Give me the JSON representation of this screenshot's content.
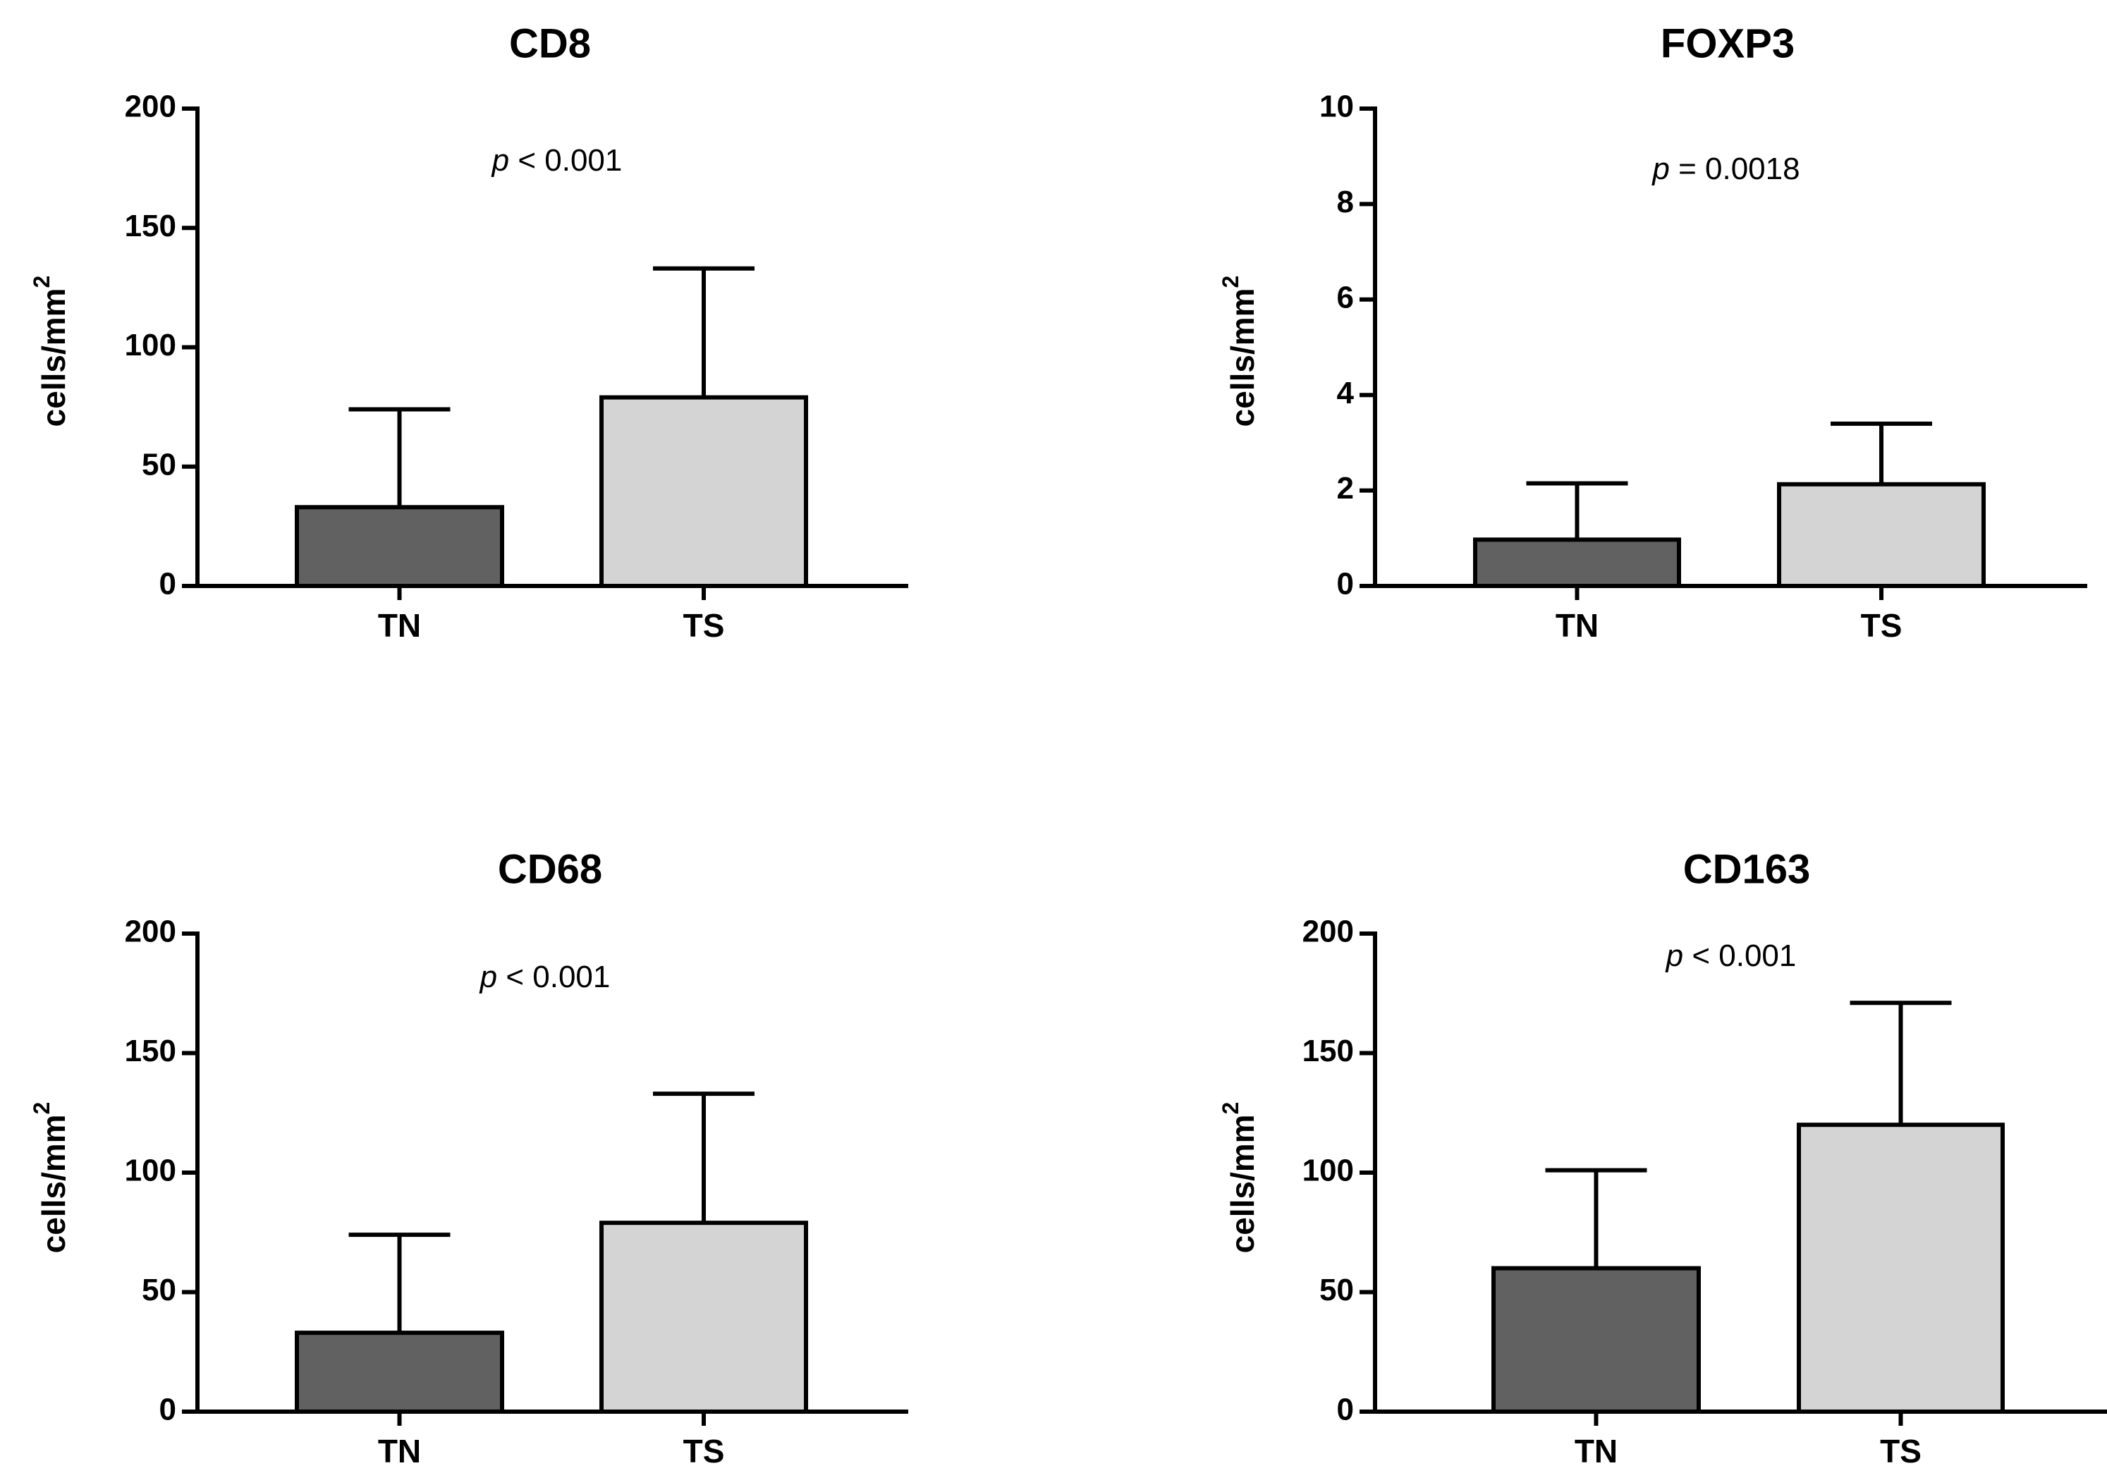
{
  "chart_data": [
    {
      "type": "bar",
      "title": "CD8",
      "ylabel": "cells/mm",
      "ylabel_superscript": "2",
      "categories": [
        "TN",
        "TS"
      ],
      "values": [
        33,
        79
      ],
      "error": [
        74,
        133
      ],
      "ylim": [
        0,
        200
      ],
      "yticks": [
        0,
        50,
        100,
        150,
        200
      ],
      "ytick_labels": [
        "0",
        "50",
        "100",
        "150",
        "200"
      ],
      "annotation": {
        "p": "p",
        "rest": " < 0.001"
      },
      "colors": [
        "#616161",
        "#d4d4d4"
      ]
    },
    {
      "type": "bar",
      "title": "FOXP3",
      "ylabel": "cells/mm",
      "ylabel_superscript": "2",
      "categories": [
        "TN",
        "TS"
      ],
      "values": [
        0.97,
        2.13
      ],
      "error": [
        2.15,
        3.4
      ],
      "ylim": [
        0,
        10
      ],
      "yticks": [
        0,
        2,
        4,
        6,
        8,
        10
      ],
      "ytick_labels": [
        "0",
        "2",
        "4",
        "6",
        "8",
        "10"
      ],
      "annotation": {
        "p": "p",
        "rest": " = 0.0018"
      },
      "colors": [
        "#616161",
        "#d4d4d4"
      ]
    },
    {
      "type": "bar",
      "title": "CD68",
      "ylabel": "cells/mm",
      "ylabel_superscript": "2",
      "categories": [
        "TN",
        "TS"
      ],
      "values": [
        33,
        79
      ],
      "error": [
        74,
        133
      ],
      "ylim": [
        0,
        200
      ],
      "yticks": [
        0,
        50,
        100,
        150,
        200
      ],
      "ytick_labels": [
        "0",
        "50",
        "100",
        "150",
        "200"
      ],
      "annotation": {
        "p": "p",
        "rest": " < 0.001"
      },
      "colors": [
        "#616161",
        "#d4d4d4"
      ]
    },
    {
      "type": "bar",
      "title": "CD163",
      "ylabel": "cells/mm",
      "ylabel_superscript": "2",
      "categories": [
        "TN",
        "TS"
      ],
      "values": [
        60,
        120
      ],
      "error": [
        101,
        171
      ],
      "ylim": [
        0,
        200
      ],
      "yticks": [
        0,
        50,
        100,
        150,
        200
      ],
      "ytick_labels": [
        "0",
        "50",
        "100",
        "150",
        "200"
      ],
      "annotation": {
        "p": "p",
        "rest": " < 0.001"
      },
      "colors": [
        "#616161",
        "#d4d4d4"
      ]
    }
  ]
}
